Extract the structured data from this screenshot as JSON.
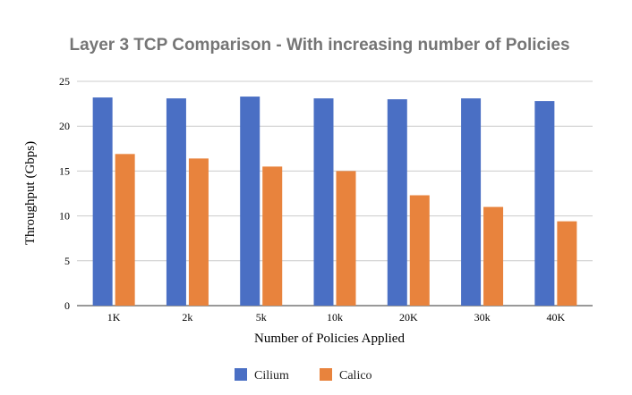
{
  "chart_data": {
    "type": "bar",
    "title": "Layer 3 TCP Comparison - With increasing number of Policies",
    "xlabel": "Number of Policies Applied",
    "ylabel": "Throughput (Gbps)",
    "categories": [
      "1K",
      "2k",
      "5k",
      "10k",
      "20K",
      "30k",
      "40K"
    ],
    "ylim": [
      0,
      25
    ],
    "yticks": [
      0,
      5,
      10,
      15,
      20,
      25
    ],
    "grid": true,
    "legend": "bottom",
    "series": [
      {
        "name": "Cilium",
        "color": "#4a6fc4",
        "values": [
          23.2,
          23.1,
          23.3,
          23.1,
          23.0,
          23.1,
          22.8
        ]
      },
      {
        "name": "Calico",
        "color": "#e8833d",
        "values": [
          16.9,
          16.4,
          15.5,
          15.0,
          12.3,
          11.0,
          9.4
        ]
      }
    ]
  }
}
